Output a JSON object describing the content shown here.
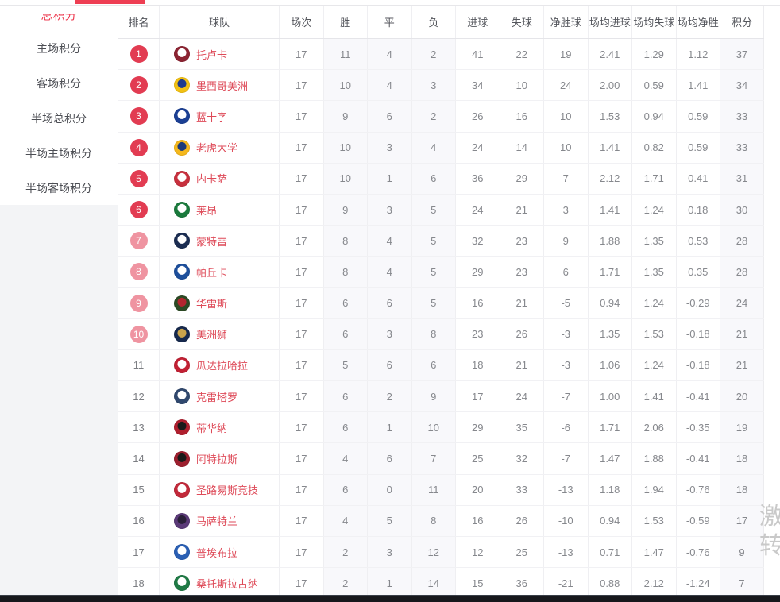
{
  "colors": {
    "accent": "#ee3e53",
    "badge_solid": "#e23c52",
    "badge_light": "#ef94a1",
    "team_link": "#de4a58",
    "shaded_col": "#f8f8fb",
    "watermark": "#c9c9c9",
    "bottom_bar": "#17181c"
  },
  "sidebar": {
    "items": [
      {
        "label": "总积分",
        "active": true
      },
      {
        "label": "主场积分",
        "active": false
      },
      {
        "label": "客场积分",
        "active": false
      },
      {
        "label": "半场总积分",
        "active": false
      },
      {
        "label": "半场主场积分",
        "active": false
      },
      {
        "label": "半场客场积分",
        "active": false
      }
    ]
  },
  "table": {
    "columns": [
      "排名",
      "球队",
      "场次",
      "胜",
      "平",
      "负",
      "进球",
      "失球",
      "净胜球",
      "场均进球",
      "场均失球",
      "场均净胜",
      "积分"
    ],
    "rows": [
      {
        "rank": 1,
        "rank_style": "solid",
        "team": "托卢卡",
        "logo": [
          "#8c2332",
          "#ffffff"
        ],
        "played": 17,
        "win": 11,
        "draw": 4,
        "loss": 2,
        "gf": 41,
        "ga": 22,
        "gd": 19,
        "avg_gf": "2.41",
        "avg_ga": "1.29",
        "avg_gd": "1.12",
        "pts": 37
      },
      {
        "rank": 2,
        "rank_style": "solid",
        "team": "墨西哥美洲",
        "logo": [
          "#f2c113",
          "#1d3a8f"
        ],
        "played": 17,
        "win": 10,
        "draw": 4,
        "loss": 3,
        "gf": 34,
        "ga": 10,
        "gd": 24,
        "avg_gf": "2.00",
        "avg_ga": "0.59",
        "avg_gd": "1.41",
        "pts": 34
      },
      {
        "rank": 3,
        "rank_style": "solid",
        "team": "蓝十字",
        "logo": [
          "#1b3f94",
          "#ffffff"
        ],
        "played": 17,
        "win": 9,
        "draw": 6,
        "loss": 2,
        "gf": 26,
        "ga": 16,
        "gd": 10,
        "avg_gf": "1.53",
        "avg_ga": "0.94",
        "avg_gd": "0.59",
        "pts": 33
      },
      {
        "rank": 4,
        "rank_style": "solid",
        "team": "老虎大学",
        "logo": [
          "#f5b81c",
          "#1b3a7a"
        ],
        "played": 17,
        "win": 10,
        "draw": 3,
        "loss": 4,
        "gf": 24,
        "ga": 14,
        "gd": 10,
        "avg_gf": "1.41",
        "avg_ga": "0.82",
        "avg_gd": "0.59",
        "pts": 33
      },
      {
        "rank": 5,
        "rank_style": "solid",
        "team": "内卡萨",
        "logo": [
          "#c8303d",
          "#ffffff"
        ],
        "played": 17,
        "win": 10,
        "draw": 1,
        "loss": 6,
        "gf": 36,
        "ga": 29,
        "gd": 7,
        "avg_gf": "2.12",
        "avg_ga": "1.71",
        "avg_gd": "0.41",
        "pts": 31
      },
      {
        "rank": 6,
        "rank_style": "solid",
        "team": "莱昂",
        "logo": [
          "#1a7a3c",
          "#ffffff"
        ],
        "played": 17,
        "win": 9,
        "draw": 3,
        "loss": 5,
        "gf": 24,
        "ga": 21,
        "gd": 3,
        "avg_gf": "1.41",
        "avg_ga": "1.24",
        "avg_gd": "0.18",
        "pts": 30
      },
      {
        "rank": 7,
        "rank_style": "light",
        "team": "蒙特雷",
        "logo": [
          "#1b2d52",
          "#ffffff"
        ],
        "played": 17,
        "win": 8,
        "draw": 4,
        "loss": 5,
        "gf": 32,
        "ga": 23,
        "gd": 9,
        "avg_gf": "1.88",
        "avg_ga": "1.35",
        "avg_gd": "0.53",
        "pts": 28
      },
      {
        "rank": 8,
        "rank_style": "light",
        "team": "帕丘卡",
        "logo": [
          "#1d4f9c",
          "#ffffff"
        ],
        "played": 17,
        "win": 8,
        "draw": 4,
        "loss": 5,
        "gf": 29,
        "ga": 23,
        "gd": 6,
        "avg_gf": "1.71",
        "avg_ga": "1.35",
        "avg_gd": "0.35",
        "pts": 28
      },
      {
        "rank": 9,
        "rank_style": "light",
        "team": "华雷斯",
        "logo": [
          "#2c4a24",
          "#b3262f"
        ],
        "played": 17,
        "win": 6,
        "draw": 6,
        "loss": 5,
        "gf": 16,
        "ga": 21,
        "gd": -5,
        "avg_gf": "0.94",
        "avg_ga": "1.24",
        "avg_gd": "-0.29",
        "pts": 24
      },
      {
        "rank": 10,
        "rank_style": "light",
        "team": "美洲狮",
        "logo": [
          "#16294d",
          "#caa44b"
        ],
        "played": 17,
        "win": 6,
        "draw": 3,
        "loss": 8,
        "gf": 23,
        "ga": 26,
        "gd": -3,
        "avg_gf": "1.35",
        "avg_ga": "1.53",
        "avg_gd": "-0.18",
        "pts": 21
      },
      {
        "rank": 11,
        "rank_style": "plain",
        "team": "瓜达拉哈拉",
        "logo": [
          "#c22033",
          "#ffffff"
        ],
        "played": 17,
        "win": 5,
        "draw": 6,
        "loss": 6,
        "gf": 18,
        "ga": 21,
        "gd": -3,
        "avg_gf": "1.06",
        "avg_ga": "1.24",
        "avg_gd": "-0.18",
        "pts": 21
      },
      {
        "rank": 12,
        "rank_style": "plain",
        "team": "克雷塔罗",
        "logo": [
          "#30486e",
          "#ffffff"
        ],
        "played": 17,
        "win": 6,
        "draw": 2,
        "loss": 9,
        "gf": 17,
        "ga": 24,
        "gd": -7,
        "avg_gf": "1.00",
        "avg_ga": "1.41",
        "avg_gd": "-0.41",
        "pts": 20
      },
      {
        "rank": 13,
        "rank_style": "plain",
        "team": "蒂华纳",
        "logo": [
          "#b01f2e",
          "#1a1a1a"
        ],
        "played": 17,
        "win": 6,
        "draw": 1,
        "loss": 10,
        "gf": 29,
        "ga": 35,
        "gd": -6,
        "avg_gf": "1.71",
        "avg_ga": "2.06",
        "avg_gd": "-0.35",
        "pts": 19
      },
      {
        "rank": 14,
        "rank_style": "plain",
        "team": "阿特拉斯",
        "logo": [
          "#9c1f2e",
          "#1a1a1a"
        ],
        "played": 17,
        "win": 4,
        "draw": 6,
        "loss": 7,
        "gf": 25,
        "ga": 32,
        "gd": -7,
        "avg_gf": "1.47",
        "avg_ga": "1.88",
        "avg_gd": "-0.41",
        "pts": 18
      },
      {
        "rank": 15,
        "rank_style": "plain",
        "team": "圣路易斯竞技",
        "logo": [
          "#c2293a",
          "#ffffff"
        ],
        "played": 17,
        "win": 6,
        "draw": 0,
        "loss": 11,
        "gf": 20,
        "ga": 33,
        "gd": -13,
        "avg_gf": "1.18",
        "avg_ga": "1.94",
        "avg_gd": "-0.76",
        "pts": 18
      },
      {
        "rank": 16,
        "rank_style": "plain",
        "team": "马萨特兰",
        "logo": [
          "#5b3a78",
          "#2a2038"
        ],
        "played": 17,
        "win": 4,
        "draw": 5,
        "loss": 8,
        "gf": 16,
        "ga": 26,
        "gd": -10,
        "avg_gf": "0.94",
        "avg_ga": "1.53",
        "avg_gd": "-0.59",
        "pts": 17
      },
      {
        "rank": 17,
        "rank_style": "plain",
        "team": "普埃布拉",
        "logo": [
          "#2a5fb4",
          "#ffffff"
        ],
        "played": 17,
        "win": 2,
        "draw": 3,
        "loss": 12,
        "gf": 12,
        "ga": 25,
        "gd": -13,
        "avg_gf": "0.71",
        "avg_ga": "1.47",
        "avg_gd": "-0.76",
        "pts": 9
      },
      {
        "rank": 18,
        "rank_style": "plain",
        "team": "桑托斯拉古纳",
        "logo": [
          "#1f7a45",
          "#ffffff"
        ],
        "played": 17,
        "win": 2,
        "draw": 1,
        "loss": 14,
        "gf": 15,
        "ga": 36,
        "gd": -21,
        "avg_gf": "0.88",
        "avg_ga": "2.12",
        "avg_gd": "-1.24",
        "pts": 7
      }
    ]
  },
  "watermark": {
    "lines": [
      "激",
      "转"
    ]
  }
}
